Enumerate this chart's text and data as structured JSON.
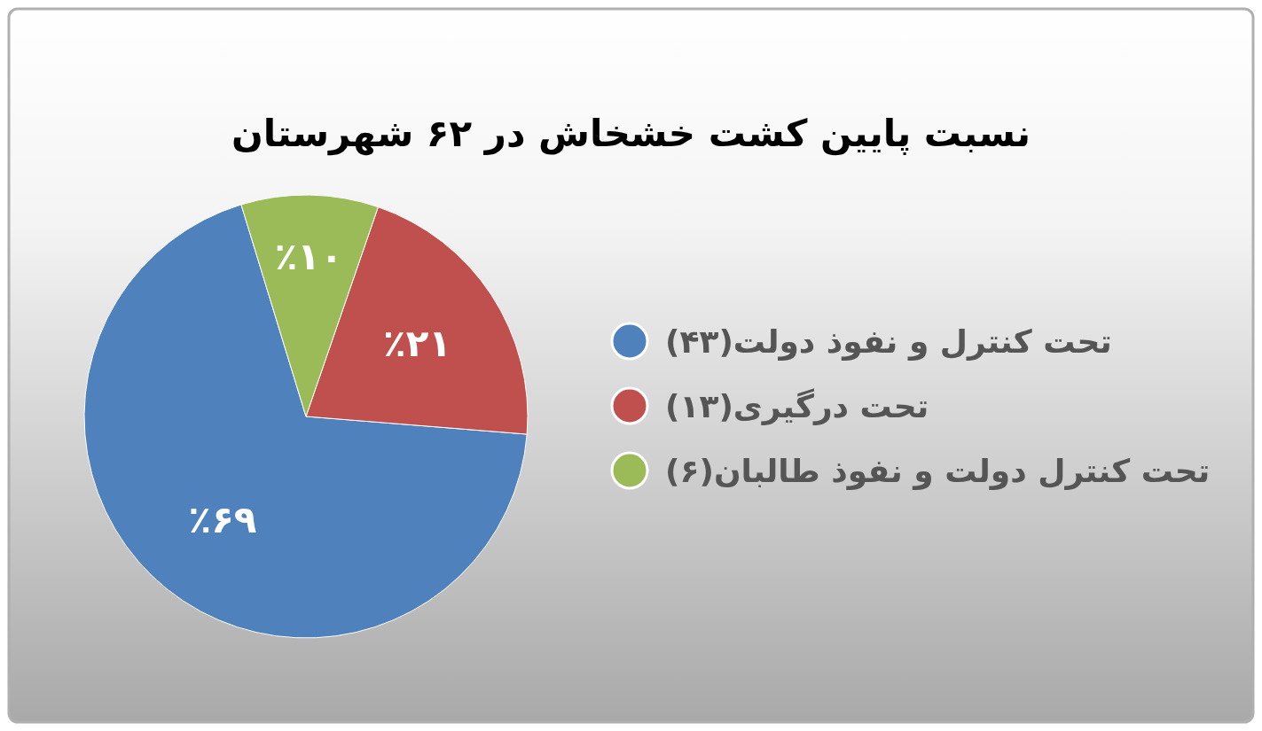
{
  "chart_data": {
    "type": "pie",
    "title": "نسبت پایین کشت خشخاش در ۶۲ شهرستان",
    "categories": [
      "تحت کنترل و نفوذ دولت(۴۳)",
      "تحت درگیری(۱۳)",
      "تحت کنترل دولت و نفوذ طالبان(۶)"
    ],
    "values": [
      69,
      21,
      10
    ],
    "colors": [
      "#4f81bd",
      "#c0504d",
      "#9bbb59"
    ],
    "value_labels": [
      "٪۶۹",
      "٪۲۱",
      "٪۱۰"
    ],
    "legend": "right"
  }
}
